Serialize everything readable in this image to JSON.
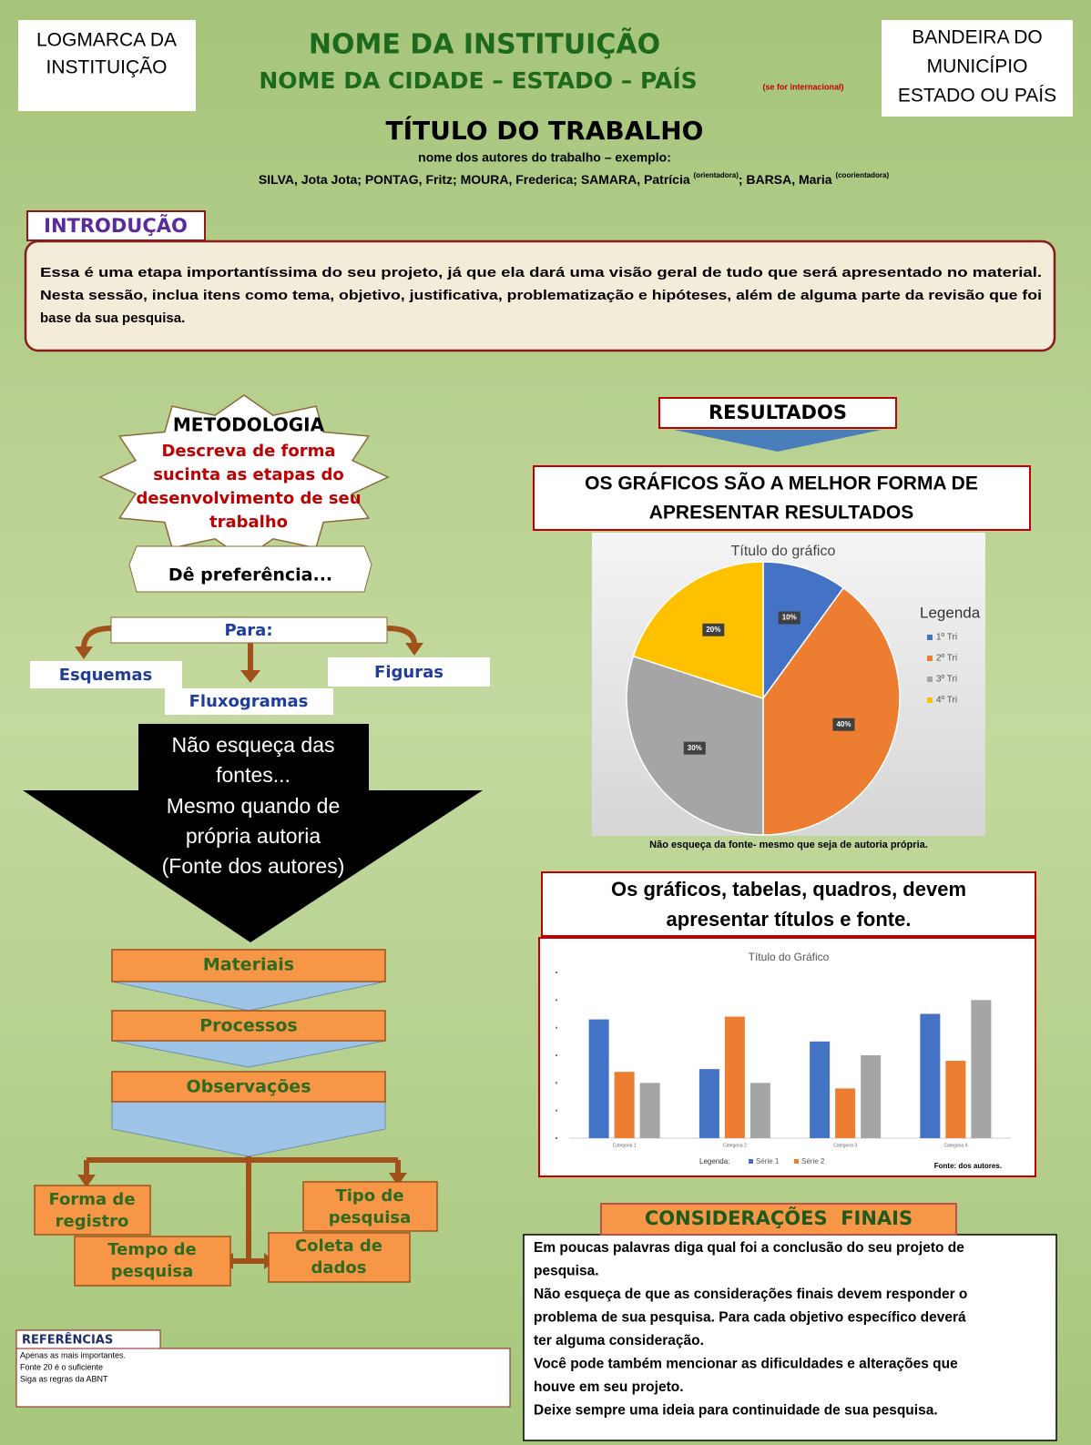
{
  "header": {
    "logo": [
      "LOGMARCA DA",
      "INSTITUIÇÃO"
    ],
    "institution": "NOME DA INSTITUIÇÃO",
    "city": "NOME DA CIDADE – ESTADO – PAÍS",
    "city_note": "(se for internacional)",
    "flag": [
      "BANDEIRA DO",
      "MUNICÍPIO",
      "ESTADO OU PAÍS"
    ],
    "title": "TÍTULO DO TRABALHO",
    "authors_label": "nome dos autores do trabalho – exemplo:",
    "authors": [
      "SILVA, Jota Jota; PONTAG, Fritz; MOURA, Frederica; SAMARA, Patrícia ",
      "(orientadora)",
      "; BARSA, Maria ",
      "(coorientadora)"
    ]
  },
  "introduction": {
    "heading": "INTRODUÇÃO",
    "lines": [
      "Essa é uma etapa importantíssima do seu projeto, já que ela dará uma visão geral de tudo que será apresentado no material.",
      "Nesta sessão, inclua itens como tema, objetivo, justificativa, problematização e hipóteses, além de alguma parte da revisão que foi",
      "base da sua pesquisa."
    ]
  },
  "methodology": {
    "heading": "METODOLOGIA",
    "description": [
      "Descreva de forma",
      "sucinta as etapas do",
      "desenvolvimento de seu",
      "trabalho"
    ],
    "preference": "Dê preferência...",
    "for": "Para:",
    "schemes": "Esquemas",
    "figures": "Figuras",
    "flowcharts": "Fluxogramas",
    "sources": [
      "Não esqueça das",
      "fontes...",
      "Mesmo quando de",
      "própria autoria",
      "(Fonte dos autores)"
    ],
    "steps": [
      "Materiais",
      "Processos",
      "Observações"
    ],
    "items": [
      [
        "Forma de",
        "registro"
      ],
      [
        "Tipo de",
        "pesquisa"
      ],
      [
        "Tempo de",
        "pesquisa"
      ],
      [
        "Coleta de",
        "dados"
      ]
    ]
  },
  "references": {
    "heading": "REFERÊNCIAS",
    "lines": [
      "Apenas as mais importantes.",
      "Fonte 20 é o suficiente",
      "Siga as regras da ABNT"
    ]
  },
  "results": {
    "heading": "RESULTADOS",
    "subtitle": [
      "OS GRÁFICOS SÃO A MELHOR FORMA DE",
      "APRESENTAR RESULTADOS"
    ],
    "pie_note": "Não esqueça da fonte- mesmo que seja de autoria própria.",
    "caption": [
      "Os gráficos, tabelas, quadros, devem",
      "apresentar títulos e fonte."
    ],
    "bar_note": "Fonte: dos autores."
  },
  "chart_data": [
    {
      "type": "pie",
      "title": "Título do gráfico",
      "legend_title": "Legenda",
      "legend": "right",
      "categories": [
        "1º Tri",
        "2º Tri",
        "3º Tri",
        "4º Tri"
      ],
      "values": [
        10,
        40,
        30,
        20
      ],
      "value_labels": [
        "10%",
        "40%",
        "30%",
        "20%"
      ],
      "colors": [
        "#4472c4",
        "#ed7d31",
        "#a5a5a5",
        "#ffc000"
      ]
    },
    {
      "type": "bar",
      "title": "Título do Gráfico",
      "legend_title": "Legenda:",
      "legend": "bottom",
      "categories": [
        "Categoria 1",
        "Categoria 2",
        "Categoria 3",
        "Categoria 4"
      ],
      "series": [
        {
          "name": "Série 1",
          "color": "#4472c4",
          "values": [
            4.3,
            2.5,
            3.5,
            4.5
          ]
        },
        {
          "name": "Série 2",
          "color": "#ed7d31",
          "values": [
            2.4,
            4.4,
            1.8,
            2.8
          ]
        },
        {
          "color": "#a5a5a5",
          "values": [
            2,
            2,
            3,
            5
          ]
        }
      ],
      "ylim": [
        0,
        6
      ],
      "yticks": [
        0,
        1,
        2,
        3,
        4,
        5,
        6
      ]
    }
  ],
  "conclusion": {
    "heading": "CONSIDERAÇÕES  FINAIS",
    "lines": [
      "Em poucas palavras diga qual foi a conclusão do seu projeto de",
      "pesquisa.",
      "Não esqueça de que as considerações finais devem responder o",
      "problema de sua pesquisa. Para cada objetivo específico deverá",
      "ter alguma consideração.",
      "Você pode também mencionar as dificuldades e alterações que",
      "houve em seu projeto.",
      "Deixe sempre uma ideia para continuidade de sua pesquisa."
    ]
  }
}
